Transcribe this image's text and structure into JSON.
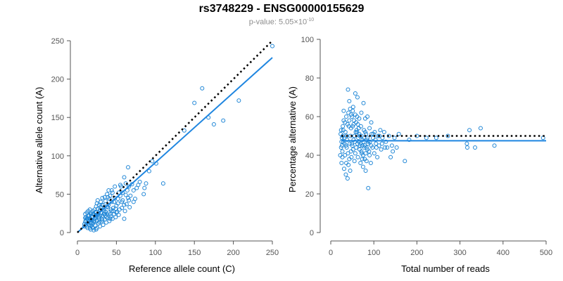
{
  "title": "rs3748229 - ENSG00000155629",
  "subtitle": {
    "prefix": "p-value: 5.05×10",
    "exponent": "-10"
  },
  "colors": {
    "points": "#1f86d6",
    "fit_line": "#1f86e0",
    "expected_line": "#000000",
    "axis": "#555555"
  },
  "chart_data": [
    {
      "type": "scatter",
      "title": "",
      "xlabel": "Reference allele count (C)",
      "ylabel": "Alternative allele count (A)",
      "xlim": [
        0,
        250
      ],
      "ylim": [
        0,
        250
      ],
      "xticks": [
        0,
        50,
        100,
        150,
        200,
        250
      ],
      "yticks": [
        0,
        50,
        100,
        150,
        200,
        250
      ],
      "grid": false,
      "expected_line": {
        "style": "dotted",
        "x": [
          0,
          250
        ],
        "y": [
          0,
          250
        ]
      },
      "fit_line": {
        "style": "solid",
        "x": [
          0,
          250
        ],
        "y": [
          0,
          228
        ]
      },
      "points": [
        [
          250,
          243
        ],
        [
          160,
          188
        ],
        [
          207,
          172
        ],
        [
          150,
          169
        ],
        [
          168,
          150
        ],
        [
          187,
          146
        ],
        [
          175,
          141
        ],
        [
          137,
          133
        ],
        [
          110,
          64
        ],
        [
          96,
          93
        ],
        [
          92,
          80
        ],
        [
          101,
          90
        ],
        [
          80,
          66
        ],
        [
          86,
          58
        ],
        [
          65,
          85
        ],
        [
          60,
          72
        ],
        [
          70,
          63
        ],
        [
          66,
          60
        ],
        [
          78,
          62
        ],
        [
          72,
          55
        ],
        [
          62,
          49
        ],
        [
          58,
          42
        ],
        [
          55,
          48
        ],
        [
          52,
          38
        ],
        [
          48,
          45
        ],
        [
          46,
          32
        ],
        [
          44,
          28
        ],
        [
          40,
          36
        ],
        [
          38,
          24
        ],
        [
          36,
          41
        ],
        [
          34,
          30
        ],
        [
          32,
          22
        ],
        [
          30,
          26
        ],
        [
          28,
          18
        ],
        [
          26,
          31
        ],
        [
          24,
          20
        ],
        [
          22,
          15
        ],
        [
          20,
          24
        ],
        [
          18,
          12
        ],
        [
          16,
          19
        ],
        [
          15,
          10
        ],
        [
          14,
          22
        ],
        [
          12,
          8
        ],
        [
          10,
          14
        ],
        [
          9,
          11
        ],
        [
          11,
          20
        ],
        [
          13,
          6
        ],
        [
          17,
          4
        ],
        [
          19,
          7
        ],
        [
          21,
          3
        ],
        [
          23,
          9
        ],
        [
          25,
          6
        ],
        [
          27,
          12
        ],
        [
          29,
          8
        ],
        [
          31,
          14
        ],
        [
          33,
          10
        ],
        [
          35,
          17
        ],
        [
          37,
          13
        ],
        [
          39,
          19
        ],
        [
          41,
          15
        ],
        [
          43,
          21
        ],
        [
          45,
          18
        ],
        [
          47,
          24
        ],
        [
          49,
          20
        ],
        [
          51,
          27
        ],
        [
          53,
          23
        ],
        [
          57,
          32
        ],
        [
          61,
          28
        ],
        [
          63,
          37
        ],
        [
          67,
          33
        ],
        [
          45,
          52
        ],
        [
          42,
          48
        ],
        [
          38,
          50
        ],
        [
          35,
          46
        ],
        [
          40,
          55
        ],
        [
          30,
          40
        ],
        [
          28,
          36
        ],
        [
          26,
          42
        ],
        [
          24,
          34
        ],
        [
          22,
          30
        ],
        [
          20,
          28
        ],
        [
          18,
          26
        ],
        [
          16,
          30
        ],
        [
          14,
          28
        ],
        [
          12,
          26
        ],
        [
          10,
          24
        ],
        [
          25,
          38
        ],
        [
          32,
          45
        ],
        [
          48,
          60
        ],
        [
          55,
          62
        ],
        [
          65,
          45
        ],
        [
          72,
          40
        ],
        [
          85,
          50
        ],
        [
          57,
          40
        ],
        [
          50,
          35
        ],
        [
          60,
          18
        ],
        [
          42,
          24
        ],
        [
          36,
          27
        ],
        [
          30,
          33
        ],
        [
          27,
          25
        ],
        [
          24,
          27
        ],
        [
          21,
          24
        ],
        [
          19,
          21
        ],
        [
          17,
          17
        ],
        [
          15,
          15
        ],
        [
          13,
          12
        ],
        [
          11,
          10
        ],
        [
          9,
          8
        ],
        [
          20,
          12
        ],
        [
          22,
          18
        ],
        [
          25,
          15
        ],
        [
          28,
          20
        ],
        [
          31,
          18
        ],
        [
          34,
          24
        ],
        [
          37,
          20
        ],
        [
          40,
          26
        ],
        [
          43,
          30
        ],
        [
          46,
          28
        ],
        [
          49,
          31
        ],
        [
          52,
          44
        ],
        [
          58,
          52
        ],
        [
          64,
          55
        ],
        [
          68,
          48
        ],
        [
          74,
          44
        ],
        [
          62,
          64
        ],
        [
          56,
          60
        ],
        [
          44,
          40
        ],
        [
          41,
          44
        ],
        [
          39,
          33
        ],
        [
          33,
          36
        ],
        [
          29,
          30
        ],
        [
          23,
          22
        ],
        [
          19,
          16
        ],
        [
          16,
          13
        ],
        [
          14,
          16
        ],
        [
          12,
          18
        ],
        [
          26,
          24
        ],
        [
          34,
          28
        ],
        [
          38,
          34
        ],
        [
          27,
          20
        ],
        [
          21,
          14
        ],
        [
          18,
          20
        ],
        [
          15,
          22
        ],
        [
          13,
          18
        ],
        [
          11,
          16
        ],
        [
          10,
          19
        ],
        [
          17,
          24
        ],
        [
          23,
          26
        ],
        [
          29,
          22
        ],
        [
          35,
          24
        ],
        [
          31,
          36
        ],
        [
          47,
          40
        ],
        [
          53,
          52
        ],
        [
          44,
          55
        ],
        [
          39,
          46
        ],
        [
          20,
          6
        ],
        [
          24,
          4
        ],
        [
          18,
          9
        ],
        [
          16,
          6
        ],
        [
          28,
          14
        ],
        [
          32,
          16
        ],
        [
          36,
          22
        ],
        [
          42,
          18
        ],
        [
          50,
          26
        ],
        [
          54,
          30
        ],
        [
          60,
          36
        ],
        [
          66,
          42
        ],
        [
          76,
          58
        ],
        [
          88,
          64
        ]
      ]
    },
    {
      "type": "scatter",
      "title": "",
      "xlabel": "Total number of reads",
      "ylabel": "Percentage alternative (A)",
      "xlim": [
        0,
        500
      ],
      "ylim": [
        0,
        100
      ],
      "xticks": [
        0,
        100,
        200,
        300,
        400,
        500
      ],
      "yticks": [
        0,
        20,
        40,
        60,
        80,
        100
      ],
      "grid": false,
      "expected_line": {
        "style": "dotted",
        "x": [
          25,
          500
        ],
        "y": [
          50,
          50
        ]
      },
      "fit_line": {
        "style": "solid",
        "x": [
          25,
          500
        ],
        "y": [
          47.5,
          47.5
        ]
      },
      "points": [
        [
          493,
          49
        ],
        [
          380,
          45
        ],
        [
          348,
          54
        ],
        [
          322,
          53
        ],
        [
          316,
          46
        ],
        [
          317,
          44
        ],
        [
          335,
          44
        ],
        [
          272,
          50
        ],
        [
          245,
          49
        ],
        [
          222,
          49
        ],
        [
          200,
          50
        ],
        [
          182,
          48
        ],
        [
          172,
          37
        ],
        [
          158,
          51
        ],
        [
          153,
          44
        ],
        [
          144,
          42
        ],
        [
          148,
          49
        ],
        [
          139,
          39
        ],
        [
          131,
          44
        ],
        [
          124,
          52
        ],
        [
          115,
          53
        ],
        [
          110,
          50
        ],
        [
          104,
          48
        ],
        [
          99,
          51
        ],
        [
          94,
          57
        ],
        [
          90,
          54
        ],
        [
          85,
          60
        ],
        [
          80,
          59
        ],
        [
          76,
          67
        ],
        [
          71,
          62
        ],
        [
          66,
          59
        ],
        [
          62,
          70
        ],
        [
          57,
          72
        ],
        [
          52,
          65
        ],
        [
          47,
          61
        ],
        [
          43,
          68
        ],
        [
          40,
          74
        ],
        [
          36,
          60
        ],
        [
          33,
          57
        ],
        [
          30,
          63
        ],
        [
          28,
          50
        ],
        [
          26,
          45
        ],
        [
          24,
          53
        ],
        [
          22,
          40
        ],
        [
          25,
          36
        ],
        [
          27,
          42
        ],
        [
          29,
          47
        ],
        [
          31,
          33
        ],
        [
          33,
          40
        ],
        [
          35,
          30
        ],
        [
          37,
          44
        ],
        [
          39,
          28
        ],
        [
          41,
          35
        ],
        [
          43,
          38
        ],
        [
          45,
          32
        ],
        [
          47,
          42
        ],
        [
          49,
          46
        ],
        [
          51,
          55
        ],
        [
          53,
          48
        ],
        [
          55,
          37
        ],
        [
          57,
          41
        ],
        [
          59,
          44
        ],
        [
          61,
          52
        ],
        [
          63,
          39
        ],
        [
          65,
          47
        ],
        [
          67,
          43
        ],
        [
          69,
          36
        ],
        [
          71,
          50
        ],
        [
          73,
          45
        ],
        [
          75,
          40
        ],
        [
          77,
          53
        ],
        [
          79,
          38
        ],
        [
          81,
          32
        ],
        [
          83,
          44
        ],
        [
          85,
          49
        ],
        [
          87,
          23
        ],
        [
          89,
          42
        ],
        [
          91,
          47
        ],
        [
          93,
          36
        ],
        [
          95,
          51
        ],
        [
          97,
          44
        ],
        [
          101,
          41
        ],
        [
          105,
          46
        ],
        [
          108,
          39
        ],
        [
          112,
          45
        ],
        [
          117,
          43
        ],
        [
          120,
          49
        ],
        [
          128,
          47
        ],
        [
          135,
          50
        ],
        [
          142,
          45
        ],
        [
          30,
          58
        ],
        [
          34,
          52
        ],
        [
          38,
          48
        ],
        [
          42,
          55
        ],
        [
          46,
          50
        ],
        [
          50,
          45
        ],
        [
          54,
          58
        ],
        [
          58,
          52
        ],
        [
          62,
          46
        ],
        [
          66,
          51
        ],
        [
          70,
          55
        ],
        [
          74,
          48
        ],
        [
          78,
          44
        ],
        [
          82,
          51
        ],
        [
          86,
          46
        ],
        [
          90,
          40
        ],
        [
          94,
          45
        ],
        [
          98,
          49
        ],
        [
          36,
          36
        ],
        [
          40,
          41
        ],
        [
          44,
          46
        ],
        [
          48,
          39
        ],
        [
          52,
          43
        ],
        [
          56,
          47
        ],
        [
          60,
          53
        ],
        [
          64,
          49
        ],
        [
          68,
          45
        ],
        [
          72,
          41
        ],
        [
          76,
          47
        ],
        [
          80,
          52
        ],
        [
          84,
          48
        ],
        [
          32,
          46
        ],
        [
          28,
          55
        ],
        [
          26,
          49
        ],
        [
          24,
          44
        ],
        [
          23,
          51
        ],
        [
          25,
          47
        ],
        [
          27,
          39
        ],
        [
          29,
          53
        ],
        [
          31,
          49
        ],
        [
          35,
          45
        ],
        [
          37,
          50
        ],
        [
          39,
          56
        ],
        [
          41,
          62
        ],
        [
          43,
          58
        ],
        [
          45,
          64
        ],
        [
          47,
          54
        ],
        [
          49,
          60
        ],
        [
          51,
          63
        ],
        [
          53,
          56
        ],
        [
          55,
          50
        ],
        [
          57,
          61
        ],
        [
          59,
          57
        ],
        [
          61,
          60
        ],
        [
          63,
          56
        ],
        [
          65,
          54
        ],
        [
          67,
          50
        ],
        [
          69,
          46
        ],
        [
          71,
          42
        ],
        [
          73,
          38
        ],
        [
          75,
          34
        ],
        [
          77,
          49
        ],
        [
          79,
          45
        ],
        [
          81,
          41
        ],
        [
          83,
          37
        ],
        [
          85,
          43
        ],
        [
          87,
          47
        ],
        [
          102,
          52
        ],
        [
          106,
          44
        ],
        [
          113,
          50
        ],
        [
          119,
          46
        ],
        [
          126,
          44
        ]
      ]
    }
  ]
}
